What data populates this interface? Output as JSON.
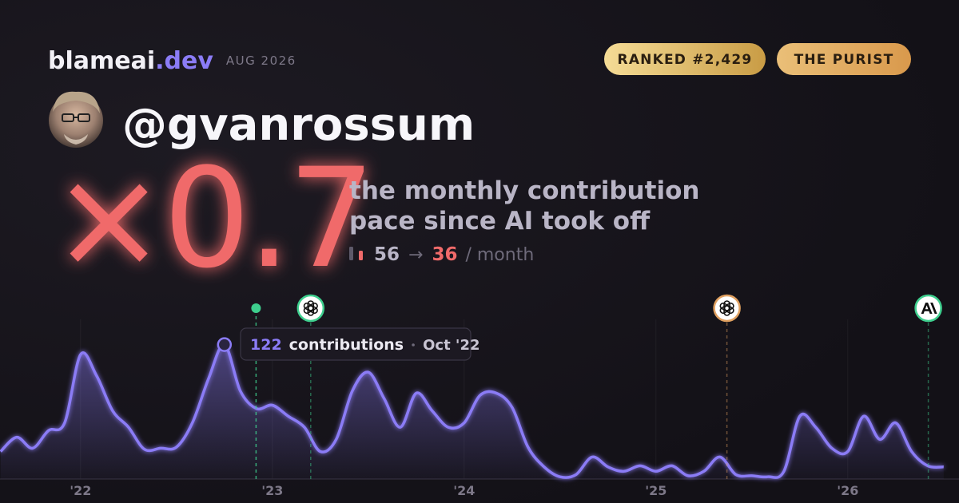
{
  "brand": {
    "name": "blameai",
    "tld": ".dev",
    "period": "AUG 2026"
  },
  "badges": [
    "RANKED #2,429",
    "THE PURIST"
  ],
  "handle": "@gvanrossum",
  "headline": {
    "multiplier": "×0.7",
    "description": [
      "the monthly contribution",
      "pace since AI took off"
    ],
    "before": 56,
    "arrow": "→",
    "after": 36,
    "unit": "/ month"
  },
  "chart_data": {
    "type": "area",
    "color": "#8b7cf6",
    "x": [
      2021.583,
      2021.667,
      2021.75,
      2021.833,
      2021.917,
      2022.0,
      2022.083,
      2022.167,
      2022.25,
      2022.333,
      2022.417,
      2022.5,
      2022.583,
      2022.667,
      2022.75,
      2022.833,
      2022.917,
      2023.0,
      2023.083,
      2023.167,
      2023.25,
      2023.333,
      2023.417,
      2023.5,
      2023.583,
      2023.667,
      2023.75,
      2023.833,
      2023.917,
      2024.0,
      2024.083,
      2024.167,
      2024.25,
      2024.333,
      2024.417,
      2024.5,
      2024.583,
      2024.667,
      2024.75,
      2024.833,
      2024.917,
      2025.0,
      2025.083,
      2025.167,
      2025.25,
      2025.333,
      2025.417,
      2025.5,
      2025.583,
      2025.667,
      2025.75,
      2025.833,
      2025.917,
      2026.0,
      2026.083,
      2026.167,
      2026.25,
      2026.333,
      2026.417,
      2026.5
    ],
    "values": [
      25,
      38,
      28,
      44,
      51,
      113,
      94,
      62,
      47,
      27,
      28,
      29,
      51,
      91,
      122,
      80,
      64,
      67,
      57,
      47,
      25,
      36,
      80,
      97,
      73,
      47,
      78,
      62,
      47,
      51,
      76,
      78,
      65,
      29,
      11,
      2,
      4,
      20,
      11,
      7,
      12,
      7,
      12,
      3,
      7,
      20,
      4,
      3,
      2,
      7,
      57,
      47,
      28,
      25,
      57,
      36,
      51,
      25,
      12,
      11
    ],
    "xlim": [
      2021.58,
      2026.58
    ],
    "ylim": [
      0,
      150
    ],
    "xticks": [
      {
        "value": 2022,
        "label": "'22"
      },
      {
        "value": 2023,
        "label": "'23"
      },
      {
        "value": 2024,
        "label": "'24"
      },
      {
        "value": 2025,
        "label": "'25"
      },
      {
        "value": 2026,
        "label": "'26"
      }
    ],
    "grid": true,
    "markers": [
      {
        "x": 2022.915,
        "color": "#3ecf8e"
      },
      {
        "x": 2023.2,
        "color": "#3ecf8e"
      },
      {
        "x": 2025.37,
        "color": "#e0a060"
      },
      {
        "x": 2026.42,
        "color": "#3ecf8e"
      }
    ],
    "tooltip": {
      "label": "contributions",
      "date": "Oct '22"
    }
  }
}
